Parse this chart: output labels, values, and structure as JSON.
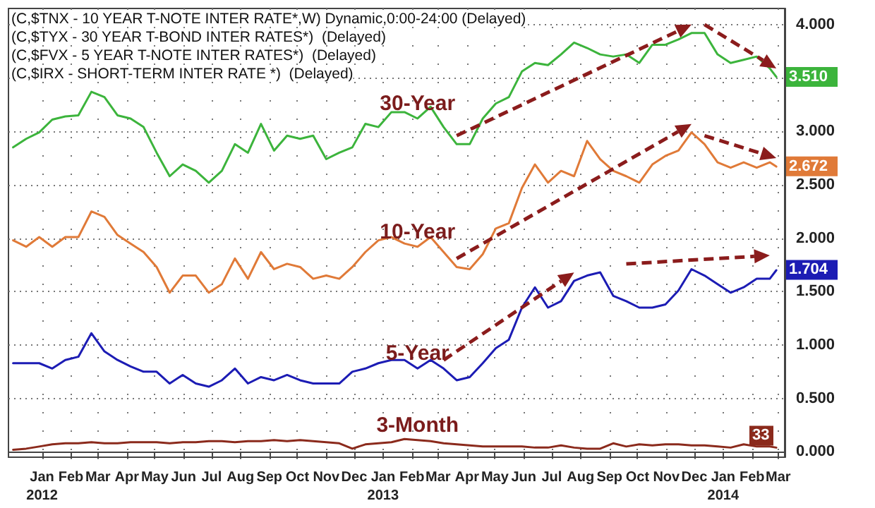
{
  "chart_data": {
    "type": "line",
    "annotations": [
      "(C,$TNX - 10 YEAR T-NOTE INTER RATE*,W) Dynamic,0:00-24:00 (Delayed)",
      "(C,$TYX - 30 YEAR T-BOND INTER RATES*)  (Delayed)",
      "(C,$FVX - 5 YEAR T-NOTE INTER RATES*)  (Delayed)",
      "(C,$IRX - SHORT-TERM INTER RATE *)  (Delayed)",
      {
        "text": "3.510",
        "x": "2014-03-13",
        "y": 3.51
      },
      {
        "text": "2.672",
        "x": "2014-03-13",
        "y": 2.672
      },
      {
        "text": "1.704",
        "x": "2014-03-13",
        "y": 1.704
      },
      {
        "text": "33",
        "x": "2014-03-13",
        "y": 0.033
      }
    ],
    "x": [
      "2011-12-15",
      "2011-12-29",
      "2012-01-12",
      "2012-01-26",
      "2012-02-09",
      "2012-02-23",
      "2012-03-08",
      "2012-03-22",
      "2012-04-05",
      "2012-04-19",
      "2012-05-03",
      "2012-05-17",
      "2012-05-31",
      "2012-06-14",
      "2012-06-28",
      "2012-07-12",
      "2012-07-26",
      "2012-08-09",
      "2012-08-23",
      "2012-09-06",
      "2012-09-20",
      "2012-10-04",
      "2012-10-18",
      "2012-11-01",
      "2012-11-15",
      "2012-11-29",
      "2012-12-13",
      "2012-12-27",
      "2013-01-10",
      "2013-01-24",
      "2013-02-07",
      "2013-02-21",
      "2013-03-07",
      "2013-03-21",
      "2013-04-04",
      "2013-04-18",
      "2013-05-02",
      "2013-05-16",
      "2013-05-30",
      "2013-06-13",
      "2013-06-27",
      "2013-07-11",
      "2013-07-25",
      "2013-08-08",
      "2013-08-22",
      "2013-09-05",
      "2013-09-19",
      "2013-10-03",
      "2013-10-17",
      "2013-10-31",
      "2013-11-14",
      "2013-11-28",
      "2013-12-12",
      "2013-12-26",
      "2014-01-09",
      "2014-01-23",
      "2014-02-06",
      "2014-02-20",
      "2014-03-06",
      "2014-03-13"
    ],
    "series": [
      {
        "name": "30-Year",
        "color": "#3cb43c",
        "values": [
          2.85,
          2.93,
          2.99,
          3.11,
          3.14,
          3.15,
          3.37,
          3.32,
          3.15,
          3.12,
          3.04,
          2.8,
          2.58,
          2.69,
          2.63,
          2.52,
          2.63,
          2.88,
          2.8,
          3.07,
          2.82,
          2.96,
          2.93,
          2.96,
          2.74,
          2.8,
          2.85,
          3.07,
          3.04,
          3.18,
          3.18,
          3.12,
          3.23,
          3.04,
          2.88,
          2.88,
          3.12,
          3.26,
          3.32,
          3.56,
          3.64,
          3.62,
          3.72,
          3.83,
          3.78,
          3.72,
          3.7,
          3.72,
          3.64,
          3.81,
          3.81,
          3.86,
          3.92,
          3.92,
          3.72,
          3.64,
          3.67,
          3.7,
          3.59,
          3.51
        ]
      },
      {
        "name": "10-Year",
        "color": "#e07a38",
        "values": [
          1.98,
          1.92,
          2.01,
          1.92,
          2.01,
          2.01,
          2.25,
          2.2,
          2.03,
          1.95,
          1.87,
          1.73,
          1.49,
          1.65,
          1.65,
          1.49,
          1.57,
          1.81,
          1.62,
          1.87,
          1.71,
          1.76,
          1.73,
          1.62,
          1.65,
          1.62,
          1.73,
          1.87,
          1.98,
          2.01,
          1.95,
          1.92,
          2.01,
          1.87,
          1.73,
          1.71,
          1.85,
          2.09,
          2.14,
          2.47,
          2.69,
          2.52,
          2.63,
          2.58,
          2.91,
          2.74,
          2.63,
          2.58,
          2.52,
          2.69,
          2.77,
          2.82,
          2.99,
          2.88,
          2.71,
          2.66,
          2.71,
          2.66,
          2.71,
          2.67
        ]
      },
      {
        "name": "5-Year",
        "color": "#1c1cb4",
        "values": [
          0.83,
          0.83,
          0.83,
          0.78,
          0.86,
          0.89,
          1.11,
          0.94,
          0.86,
          0.8,
          0.75,
          0.75,
          0.64,
          0.72,
          0.64,
          0.61,
          0.67,
          0.78,
          0.64,
          0.7,
          0.67,
          0.72,
          0.67,
          0.64,
          0.64,
          0.64,
          0.75,
          0.78,
          0.83,
          0.86,
          0.86,
          0.78,
          0.86,
          0.78,
          0.67,
          0.7,
          0.83,
          0.97,
          1.05,
          1.35,
          1.54,
          1.35,
          1.41,
          1.6,
          1.65,
          1.68,
          1.46,
          1.41,
          1.35,
          1.35,
          1.38,
          1.51,
          1.71,
          1.65,
          1.57,
          1.49,
          1.54,
          1.62,
          1.62,
          1.7
        ]
      },
      {
        "name": "3-Month",
        "color": "#8b2a1c",
        "values": [
          0.02,
          0.03,
          0.05,
          0.07,
          0.08,
          0.08,
          0.09,
          0.08,
          0.08,
          0.09,
          0.09,
          0.09,
          0.08,
          0.09,
          0.09,
          0.1,
          0.1,
          0.09,
          0.1,
          0.1,
          0.11,
          0.1,
          0.11,
          0.1,
          0.09,
          0.08,
          0.03,
          0.07,
          0.08,
          0.09,
          0.12,
          0.11,
          0.1,
          0.08,
          0.07,
          0.06,
          0.05,
          0.05,
          0.05,
          0.05,
          0.04,
          0.04,
          0.06,
          0.04,
          0.03,
          0.03,
          0.08,
          0.05,
          0.07,
          0.06,
          0.07,
          0.07,
          0.06,
          0.06,
          0.05,
          0.04,
          0.07,
          0.05,
          0.05,
          0.04
        ]
      }
    ],
    "xlim": [
      "2011-12-10",
      "2014-03-22"
    ],
    "xticks": [
      {
        "value": "2012-01-15",
        "label": "Jan\n2012"
      },
      {
        "value": "2012-02-15",
        "label": "Feb"
      },
      {
        "value": "2012-03-15",
        "label": "Mar"
      },
      {
        "value": "2012-04-15",
        "label": "Apr"
      },
      {
        "value": "2012-05-15",
        "label": "May"
      },
      {
        "value": "2012-06-15",
        "label": "Jun"
      },
      {
        "value": "2012-07-15",
        "label": "Jul"
      },
      {
        "value": "2012-08-15",
        "label": "Aug"
      },
      {
        "value": "2012-09-15",
        "label": "Sep"
      },
      {
        "value": "2012-10-15",
        "label": "Oct"
      },
      {
        "value": "2012-11-15",
        "label": "Nov"
      },
      {
        "value": "2012-12-15",
        "label": "Dec"
      },
      {
        "value": "2013-01-15",
        "label": "Jan\n2013"
      },
      {
        "value": "2013-02-15",
        "label": "Feb"
      },
      {
        "value": "2013-03-15",
        "label": "Mar"
      },
      {
        "value": "2013-04-15",
        "label": "Apr"
      },
      {
        "value": "2013-05-15",
        "label": "May"
      },
      {
        "value": "2013-06-15",
        "label": "Jun"
      },
      {
        "value": "2013-07-15",
        "label": "Jul"
      },
      {
        "value": "2013-08-15",
        "label": "Aug"
      },
      {
        "value": "2013-09-15",
        "label": "Sep"
      },
      {
        "value": "2013-10-15",
        "label": "Oct"
      },
      {
        "value": "2013-11-15",
        "label": "Nov"
      },
      {
        "value": "2013-12-15",
        "label": "Dec"
      },
      {
        "value": "2014-01-15",
        "label": "Jan\n2014"
      },
      {
        "value": "2014-02-15",
        "label": "Feb"
      },
      {
        "value": "2014-03-15",
        "label": "Mar"
      }
    ],
    "ylim": [
      -0.05,
      4.15
    ],
    "yticks": [
      {
        "value": 0,
        "label": "0.000"
      },
      {
        "value": 0.5,
        "label": "0.500"
      },
      {
        "value": 1,
        "label": "1.000"
      },
      {
        "value": 1.5,
        "label": "1.500"
      },
      {
        "value": 2,
        "label": "2.000"
      },
      {
        "value": 2.5,
        "label": "2.500"
      },
      {
        "value": 3,
        "label": "3.000"
      },
      {
        "value": 3.5,
        "label": null
      },
      {
        "value": 4,
        "label": "4.000"
      }
    ],
    "grid": true
  }
}
